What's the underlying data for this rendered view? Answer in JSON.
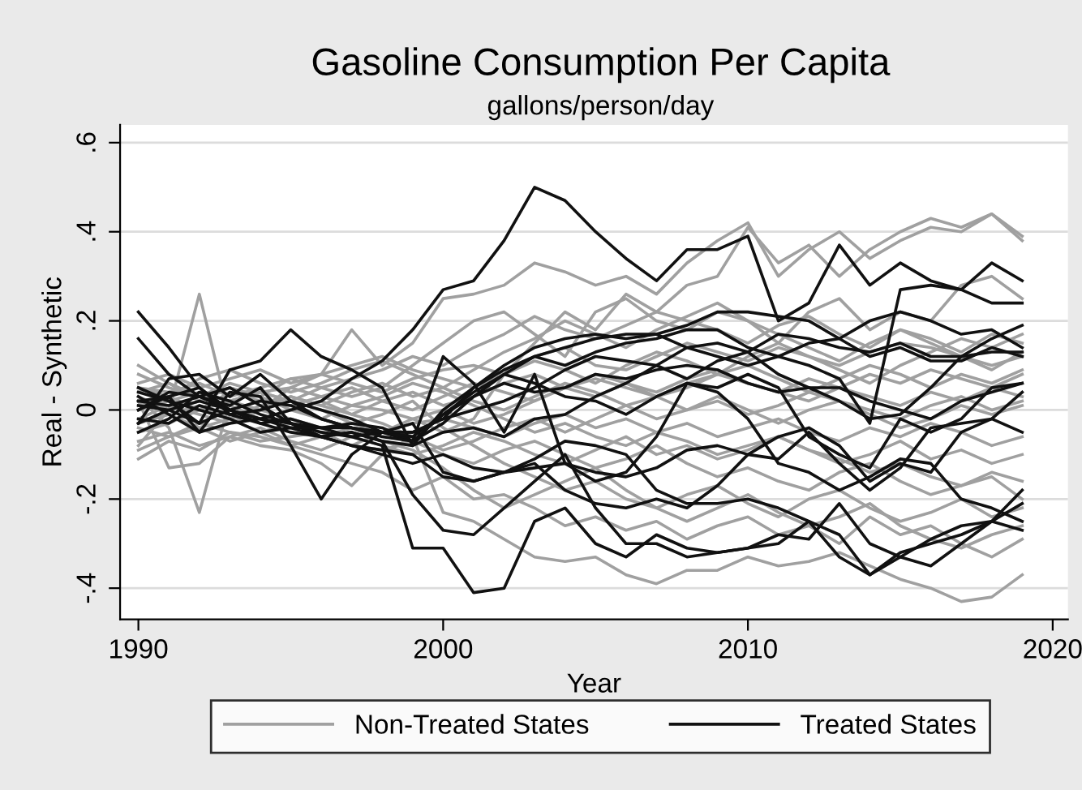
{
  "chart_data": {
    "type": "line",
    "title": "Gasoline Consumption Per Capita",
    "subtitle": "gallons/person/day",
    "xlabel": "Year",
    "ylabel": "Real - Synthetic",
    "x": [
      1990,
      1991,
      1992,
      1993,
      1994,
      1995,
      1996,
      1997,
      1998,
      1999,
      2000,
      2001,
      2002,
      2003,
      2004,
      2005,
      2006,
      2007,
      2008,
      2009,
      2010,
      2011,
      2012,
      2013,
      2014,
      2015,
      2016,
      2017,
      2018,
      2019
    ],
    "xlim": [
      1989.4,
      2020.5
    ],
    "xticks": [
      1990,
      2000,
      2010,
      2020
    ],
    "ylim": [
      -0.47,
      0.64
    ],
    "yticks": [
      {
        "value": -0.4,
        "label": "-.4"
      },
      {
        "value": -0.2,
        "label": "-.2"
      },
      0,
      {
        "value": 0.2,
        "label": ".2"
      },
      {
        "value": 0.4,
        "label": ".4"
      },
      {
        "value": 0.6,
        "label": ".6"
      }
    ],
    "grid": "y",
    "legend": "bottom",
    "marker": "none",
    "line_style": "solid",
    "series": [
      {
        "name": "Non-Treated States",
        "color": "#a0a0a0",
        "values": [
          -0.08,
          0.0,
          0.26,
          -0.02,
          0.0,
          0.05,
          0.08,
          0.18,
          0.1,
          0.15,
          0.25,
          0.26,
          0.28,
          0.33,
          0.31,
          0.28,
          0.3,
          0.26,
          0.33,
          0.38,
          0.42,
          0.3,
          0.36,
          0.4,
          0.34,
          0.38,
          0.41,
          0.4,
          0.44,
          0.38
        ]
      },
      {
        "color": "#a0a0a0",
        "values": [
          0.03,
          -0.04,
          -0.23,
          0.02,
          0.04,
          0.05,
          0.03,
          0.01,
          0.0,
          -0.02,
          -0.05,
          -0.02,
          0.08,
          0.15,
          0.22,
          0.18,
          0.26,
          0.22,
          0.28,
          0.3,
          0.41,
          0.33,
          0.37,
          0.3,
          0.36,
          0.4,
          0.43,
          0.41,
          0.44,
          0.39
        ]
      },
      {
        "color": "#a0a0a0",
        "values": [
          0.02,
          -0.13,
          -0.12,
          -0.06,
          -0.08,
          -0.09,
          -0.12,
          -0.17,
          -0.1,
          -0.06,
          -0.23,
          -0.25,
          -0.29,
          -0.33,
          -0.34,
          -0.33,
          -0.37,
          -0.39,
          -0.36,
          -0.36,
          -0.33,
          -0.35,
          -0.34,
          -0.32,
          -0.35,
          -0.38,
          -0.4,
          -0.43,
          -0.42,
          -0.37
        ]
      },
      {
        "color": "#a0a0a0",
        "values": [
          0.1,
          0.06,
          0.02,
          0.05,
          0.03,
          0.07,
          0.05,
          0.03,
          0.05,
          0.1,
          0.15,
          0.2,
          0.22,
          0.17,
          0.12,
          0.22,
          0.25,
          0.2,
          0.18,
          0.22,
          0.2,
          0.15,
          0.22,
          0.25,
          0.18,
          0.22,
          0.2,
          0.28,
          0.3,
          0.25
        ]
      },
      {
        "color": "#a0a0a0",
        "values": [
          -0.11,
          -0.07,
          -0.09,
          -0.05,
          -0.06,
          -0.08,
          -0.1,
          -0.12,
          -0.14,
          -0.18,
          -0.15,
          -0.2,
          -0.19,
          -0.22,
          -0.26,
          -0.24,
          -0.27,
          -0.25,
          -0.29,
          -0.26,
          -0.24,
          -0.28,
          -0.26,
          -0.3,
          -0.24,
          -0.28,
          -0.26,
          -0.3,
          -0.33,
          -0.29
        ]
      },
      {
        "color": "#a0a0a0",
        "values": [
          0.05,
          0.04,
          0.06,
          0.03,
          0.05,
          0.07,
          0.08,
          0.06,
          0.04,
          0.07,
          0.09,
          0.1,
          0.08,
          0.12,
          0.14,
          0.1,
          0.09,
          0.12,
          0.15,
          0.13,
          0.11,
          0.14,
          0.12,
          0.1,
          0.13,
          0.15,
          0.14,
          0.12,
          0.1,
          0.12
        ]
      },
      {
        "color": "#a0a0a0",
        "values": [
          -0.04,
          -0.06,
          -0.03,
          -0.05,
          -0.07,
          -0.06,
          -0.05,
          -0.08,
          -0.09,
          -0.07,
          -0.1,
          -0.12,
          -0.09,
          -0.07,
          -0.1,
          -0.13,
          -0.11,
          -0.08,
          -0.12,
          -0.15,
          -0.13,
          -0.16,
          -0.18,
          -0.14,
          -0.12,
          -0.16,
          -0.19,
          -0.17,
          -0.15,
          -0.2
        ]
      },
      {
        "color": "#a0a0a0",
        "values": [
          0.01,
          0.03,
          0.0,
          0.04,
          0.02,
          0.01,
          0.03,
          0.05,
          0.02,
          0.0,
          0.03,
          0.06,
          0.04,
          0.02,
          0.05,
          0.07,
          0.05,
          0.03,
          0.06,
          0.08,
          0.06,
          0.04,
          0.07,
          0.05,
          0.08,
          0.06,
          0.09,
          0.07,
          0.05,
          0.08
        ]
      },
      {
        "color": "#a0a0a0",
        "values": [
          -0.02,
          0.01,
          -0.01,
          -0.03,
          0.0,
          -0.02,
          -0.04,
          -0.03,
          -0.05,
          -0.03,
          -0.02,
          -0.04,
          -0.06,
          -0.03,
          -0.01,
          -0.04,
          -0.02,
          -0.05,
          -0.03,
          -0.06,
          -0.04,
          -0.02,
          -0.05,
          -0.07,
          -0.04,
          -0.06,
          -0.03,
          -0.05,
          -0.08,
          -0.06
        ]
      },
      {
        "color": "#a0a0a0",
        "values": [
          0.06,
          0.08,
          0.05,
          0.07,
          0.09,
          0.06,
          0.08,
          0.1,
          0.12,
          0.09,
          0.07,
          0.05,
          0.08,
          0.11,
          0.09,
          0.06,
          0.1,
          0.13,
          0.11,
          0.08,
          0.12,
          0.15,
          0.12,
          0.09,
          0.06,
          0.1,
          0.13,
          0.16,
          0.14,
          0.17
        ]
      },
      {
        "color": "#a0a0a0",
        "values": [
          -0.07,
          -0.05,
          -0.08,
          -0.06,
          -0.04,
          -0.07,
          -0.09,
          -0.06,
          -0.08,
          -0.1,
          -0.08,
          -0.05,
          -0.07,
          -0.1,
          -0.12,
          -0.09,
          -0.06,
          -0.1,
          -0.08,
          -0.11,
          -0.09,
          -0.06,
          -0.09,
          -0.12,
          -0.1,
          -0.07,
          -0.11,
          -0.09,
          -0.12,
          -0.1
        ]
      },
      {
        "color": "#a0a0a0",
        "values": [
          0.0,
          0.02,
          0.04,
          0.02,
          0.0,
          0.03,
          0.01,
          0.04,
          0.06,
          0.03,
          0.05,
          0.02,
          0.0,
          0.03,
          0.06,
          0.04,
          0.01,
          0.03,
          0.0,
          0.02,
          -0.01,
          0.01,
          0.04,
          0.02,
          0.0,
          -0.02,
          0.01,
          0.03,
          0.0,
          0.02
        ]
      },
      {
        "color": "#a0a0a0",
        "values": [
          0.03,
          0.0,
          0.02,
          0.05,
          0.03,
          0.0,
          -0.02,
          0.01,
          0.03,
          0.06,
          0.04,
          0.01,
          -0.02,
          -0.05,
          -0.03,
          -0.06,
          -0.08,
          -0.05,
          -0.07,
          -0.1,
          -0.08,
          -0.06,
          -0.09,
          -0.11,
          -0.14,
          -0.12,
          -0.15,
          -0.17,
          -0.14,
          -0.16
        ]
      },
      {
        "color": "#a0a0a0",
        "values": [
          -0.05,
          -0.03,
          0.0,
          0.02,
          0.04,
          0.02,
          0.05,
          0.07,
          0.09,
          0.12,
          0.1,
          0.14,
          0.17,
          0.21,
          0.18,
          0.16,
          0.19,
          0.22,
          0.2,
          0.18,
          0.15,
          0.19,
          0.21,
          0.17,
          0.14,
          0.18,
          0.16,
          0.13,
          0.17,
          0.15
        ]
      },
      {
        "color": "#a0a0a0",
        "values": [
          0.08,
          0.05,
          0.03,
          0.06,
          0.04,
          0.02,
          0.0,
          -0.03,
          -0.01,
          0.02,
          -0.04,
          -0.08,
          -0.12,
          -0.15,
          -0.18,
          -0.16,
          -0.2,
          -0.22,
          -0.19,
          -0.17,
          -0.21,
          -0.24,
          -0.2,
          -0.18,
          -0.22,
          -0.25,
          -0.23,
          -0.2,
          -0.24,
          -0.22
        ]
      },
      {
        "color": "#a0a0a0",
        "values": [
          -0.03,
          -0.01,
          0.01,
          -0.02,
          0.01,
          0.03,
          0.01,
          -0.01,
          0.02,
          0.04,
          0.01,
          0.03,
          0.06,
          0.08,
          0.05,
          0.03,
          0.06,
          0.04,
          0.07,
          0.09,
          0.06,
          0.04,
          0.02,
          0.05,
          0.03,
          0.01,
          0.04,
          0.02,
          0.05,
          0.03
        ]
      },
      {
        "color": "#a0a0a0",
        "values": [
          0.04,
          0.06,
          0.03,
          0.01,
          -0.02,
          0.0,
          0.02,
          -0.01,
          -0.03,
          -0.06,
          -0.09,
          -0.07,
          -0.04,
          -0.02,
          -0.05,
          -0.02,
          0.01,
          -0.02,
          0.0,
          0.03,
          0.0,
          -0.03,
          0.0,
          0.02,
          -0.01,
          -0.04,
          -0.02,
          0.01,
          -0.01,
          0.01
        ]
      },
      {
        "color": "#a0a0a0",
        "values": [
          -0.09,
          -0.06,
          -0.04,
          -0.07,
          -0.05,
          -0.03,
          -0.06,
          -0.08,
          -0.05,
          -0.02,
          0.0,
          -0.03,
          -0.01,
          0.02,
          0.05,
          0.08,
          0.06,
          0.03,
          0.05,
          0.08,
          0.1,
          0.07,
          0.04,
          0.07,
          0.1,
          0.08,
          0.05,
          0.08,
          0.06,
          0.09
        ]
      },
      {
        "color": "#a0a0a0",
        "values": [
          0.02,
          -0.01,
          -0.04,
          -0.02,
          -0.05,
          -0.08,
          -0.06,
          -0.04,
          -0.07,
          -0.09,
          -0.13,
          -0.18,
          -0.22,
          -0.19,
          -0.16,
          -0.13,
          -0.18,
          -0.22,
          -0.25,
          -0.22,
          -0.19,
          -0.23,
          -0.26,
          -0.24,
          -0.21,
          -0.26,
          -0.29,
          -0.31,
          -0.28,
          -0.26
        ]
      },
      {
        "color": "#a0a0a0",
        "values": [
          0.05,
          0.03,
          0.07,
          0.09,
          0.06,
          0.04,
          0.06,
          0.09,
          0.11,
          0.08,
          0.05,
          0.09,
          0.13,
          0.16,
          0.2,
          0.17,
          0.14,
          0.18,
          0.21,
          0.24,
          0.2,
          0.17,
          0.14,
          0.11,
          0.15,
          0.18,
          0.15,
          0.12,
          0.09,
          0.13
        ]
      },
      {
        "name": "Treated States",
        "color": "#111111",
        "values": [
          0.02,
          0.01,
          0.03,
          0.0,
          -0.02,
          0.0,
          0.02,
          0.07,
          0.11,
          0.18,
          0.27,
          0.29,
          0.38,
          0.5,
          0.47,
          0.4,
          0.34,
          0.29,
          0.36,
          0.36,
          0.39,
          0.2,
          0.24,
          0.37,
          0.28,
          0.33,
          0.29,
          0.27,
          0.33,
          0.29
        ]
      },
      {
        "color": "#111111",
        "values": [
          0.16,
          0.08,
          0.03,
          0.05,
          0.01,
          -0.03,
          -0.05,
          -0.06,
          -0.08,
          -0.31,
          -0.31,
          -0.41,
          -0.4,
          -0.25,
          -0.22,
          -0.3,
          -0.33,
          -0.28,
          -0.31,
          -0.32,
          -0.31,
          -0.3,
          -0.25,
          -0.33,
          -0.37,
          -0.32,
          -0.3,
          -0.28,
          -0.25,
          -0.18
        ]
      },
      {
        "color": "#111111",
        "values": [
          0.22,
          0.14,
          0.05,
          0.0,
          -0.02,
          -0.03,
          -0.06,
          -0.05,
          -0.07,
          -0.19,
          -0.27,
          -0.28,
          -0.22,
          -0.16,
          -0.1,
          -0.22,
          -0.3,
          -0.3,
          -0.33,
          -0.32,
          -0.31,
          -0.28,
          -0.29,
          -0.21,
          -0.3,
          -0.33,
          -0.35,
          -0.3,
          -0.25,
          -0.21
        ]
      },
      {
        "color": "#111111",
        "values": [
          0.04,
          0.02,
          -0.03,
          0.09,
          0.11,
          0.18,
          0.12,
          0.09,
          0.05,
          -0.08,
          0.0,
          0.05,
          0.1,
          0.14,
          0.16,
          0.17,
          0.16,
          0.17,
          0.14,
          0.12,
          0.1,
          0.12,
          0.15,
          0.16,
          0.2,
          0.22,
          0.2,
          0.17,
          0.18,
          0.14
        ]
      },
      {
        "color": "#111111",
        "values": [
          0.0,
          0.03,
          -0.05,
          0.04,
          0.03,
          -0.08,
          -0.2,
          -0.1,
          -0.05,
          -0.07,
          0.12,
          0.06,
          -0.05,
          0.08,
          -0.12,
          -0.16,
          -0.14,
          -0.06,
          0.06,
          0.05,
          0.08,
          0.05,
          -0.06,
          -0.1,
          -0.13,
          -0.02,
          -0.05,
          -0.02,
          0.05,
          0.06
        ]
      },
      {
        "color": "#111111",
        "values": [
          -0.03,
          0.0,
          0.02,
          0.0,
          -0.03,
          -0.02,
          -0.04,
          -0.03,
          -0.04,
          -0.07,
          -0.03,
          0.03,
          0.08,
          0.12,
          0.1,
          0.13,
          0.15,
          0.16,
          0.18,
          0.18,
          0.14,
          0.12,
          0.1,
          0.07,
          -0.03,
          0.27,
          0.28,
          0.27,
          0.24,
          0.24
        ]
      },
      {
        "color": "#111111",
        "values": [
          0.05,
          0.02,
          0.0,
          -0.02,
          -0.05,
          -0.04,
          -0.06,
          -0.08,
          -0.1,
          -0.12,
          -0.1,
          -0.13,
          -0.14,
          -0.11,
          -0.07,
          -0.08,
          -0.1,
          -0.18,
          -0.21,
          -0.21,
          -0.2,
          -0.22,
          -0.25,
          -0.28,
          -0.37,
          -0.33,
          -0.29,
          -0.26,
          -0.25,
          -0.27
        ]
      },
      {
        "color": "#111111",
        "values": [
          0.02,
          0.03,
          0.05,
          -0.01,
          0.0,
          0.02,
          0.0,
          -0.02,
          -0.05,
          -0.06,
          -0.01,
          0.03,
          0.06,
          0.04,
          0.05,
          0.08,
          0.07,
          0.09,
          0.1,
          0.09,
          0.06,
          0.04,
          0.05,
          0.05,
          0.02,
          0.0,
          -0.02,
          0.02,
          0.04,
          0.06
        ]
      },
      {
        "color": "#111111",
        "values": [
          -0.05,
          -0.02,
          0.04,
          0.02,
          -0.01,
          -0.03,
          -0.04,
          -0.04,
          -0.05,
          -0.05,
          -0.02,
          0.0,
          0.02,
          0.05,
          0.09,
          0.12,
          0.11,
          0.1,
          0.14,
          0.15,
          0.13,
          0.17,
          0.16,
          0.14,
          0.13,
          0.15,
          0.12,
          0.12,
          0.13,
          0.13
        ]
      },
      {
        "color": "#111111",
        "values": [
          -0.02,
          -0.03,
          0.01,
          -0.01,
          -0.03,
          -0.05,
          -0.06,
          -0.05,
          -0.07,
          -0.08,
          -0.05,
          -0.04,
          -0.06,
          -0.02,
          -0.01,
          0.03,
          0.06,
          0.1,
          0.07,
          0.11,
          0.13,
          0.08,
          0.05,
          0.02,
          -0.02,
          -0.01,
          0.05,
          0.12,
          0.16,
          0.19
        ]
      },
      {
        "color": "#111111",
        "values": [
          0.0,
          0.04,
          0.03,
          0.01,
          0.05,
          -0.03,
          -0.06,
          -0.08,
          -0.09,
          -0.1,
          -0.15,
          -0.16,
          -0.14,
          -0.12,
          -0.18,
          -0.21,
          -0.22,
          -0.2,
          -0.22,
          -0.17,
          -0.1,
          -0.06,
          -0.04,
          -0.08,
          -0.16,
          -0.12,
          -0.14,
          -0.05,
          -0.02,
          -0.05
        ]
      },
      {
        "color": "#111111",
        "values": [
          0.03,
          -0.01,
          -0.05,
          -0.03,
          -0.02,
          -0.04,
          -0.04,
          -0.06,
          -0.05,
          -0.05,
          -0.02,
          0.05,
          0.09,
          0.12,
          0.14,
          0.16,
          0.17,
          0.17,
          0.19,
          0.22,
          0.22,
          0.21,
          0.2,
          0.16,
          0.12,
          0.14,
          0.11,
          0.11,
          0.14,
          0.12
        ]
      },
      {
        "color": "#111111",
        "values": [
          0.01,
          0.0,
          -0.03,
          0.0,
          0.02,
          0.01,
          -0.02,
          -0.04,
          -0.05,
          -0.03,
          -0.14,
          -0.16,
          -0.14,
          -0.13,
          -0.12,
          -0.14,
          -0.15,
          -0.13,
          -0.09,
          -0.08,
          -0.1,
          -0.11,
          -0.05,
          -0.12,
          -0.18,
          -0.13,
          -0.04,
          -0.03,
          -0.02,
          0.04
        ]
      },
      {
        "color": "#111111",
        "values": [
          -0.03,
          0.07,
          0.08,
          0.03,
          0.08,
          0.02,
          -0.02,
          -0.04,
          -0.06,
          -0.07,
          -0.01,
          0.04,
          0.08,
          0.06,
          0.03,
          0.02,
          -0.01,
          0.03,
          0.06,
          0.04,
          -0.02,
          -0.12,
          -0.14,
          -0.18,
          -0.15,
          -0.11,
          -0.12,
          -0.2,
          -0.22,
          -0.25
        ]
      }
    ]
  }
}
